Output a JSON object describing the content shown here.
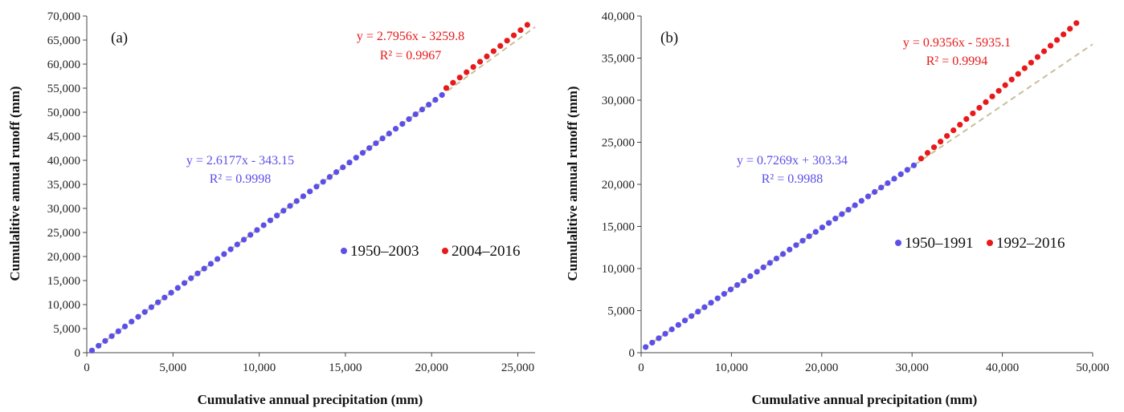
{
  "chart_data": [
    {
      "type": "scatter",
      "panel_label": "(a)",
      "xlabel": "Cumulative annual precipitation (mm)",
      "ylabel": "Cumulalitive annual runoff (mm)",
      "xlim": [
        0,
        26000
      ],
      "ylim": [
        0,
        70000
      ],
      "xticks": [
        "0",
        "5,000",
        "10,000",
        "15,000",
        "20,000",
        "25,000"
      ],
      "yticks": [
        "0",
        "5,000",
        "10,000",
        "15,000",
        "20,000",
        "25,000",
        "30,000",
        "35,000",
        "40,000",
        "45,000",
        "50,000",
        "55,000",
        "60,000",
        "65,000",
        "70,000"
      ],
      "grid": false,
      "legend_position": "center-right",
      "series": [
        {
          "name": "1950–2003",
          "color": "#5B4FE8",
          "x_start": 300,
          "x_end": 20600,
          "count": 54,
          "slope": 2.6177,
          "intercept": -343.15,
          "equation": "y = 2.6177x - 343.15",
          "r2": "R² = 0.9998"
        },
        {
          "name": "2004–2016",
          "color": "#E8191A",
          "x_start": 20850,
          "x_end": 25550,
          "count": 13,
          "slope": 2.7956,
          "intercept": -3259.8,
          "equation": "y = 2.7956x - 3259.8",
          "r2": "R² = 0.9967"
        }
      ],
      "trend_line": {
        "style": "dashed",
        "color": "#C8BE9A",
        "extends_to_x": 26000
      }
    },
    {
      "type": "scatter",
      "panel_label": "(b)",
      "xlabel": "Cumulative annual precipitation (mm)",
      "ylabel": "Cumulalitive annual runoff (mm)",
      "xlim": [
        0,
        50000
      ],
      "ylim": [
        0,
        40000
      ],
      "xticks": [
        "0",
        "10,000",
        "20,000",
        "30,000",
        "40,000",
        "50,000"
      ],
      "yticks": [
        "0",
        "5,000",
        "10,000",
        "15,000",
        "20,000",
        "25,000",
        "30,000",
        "35,000",
        "40,000"
      ],
      "grid": false,
      "legend_position": "center-right",
      "series": [
        {
          "name": "1950–1991",
          "color": "#5B4FE8",
          "x_start": 500,
          "x_end": 30200,
          "count": 42,
          "slope": 0.7269,
          "intercept": 303.34,
          "equation": "y = 0.7269x + 303.34",
          "r2": "R² = 0.9988"
        },
        {
          "name": "1992–2016",
          "color": "#E8191A",
          "x_start": 31000,
          "x_end": 48200,
          "count": 25,
          "slope": 0.9356,
          "intercept": -5935.1,
          "equation": "y = 0.9356x - 5935.1",
          "r2": "R² = 0.9994"
        }
      ],
      "trend_line": {
        "style": "dashed",
        "color": "#C8BE9A",
        "extends_to_x": 50000
      }
    }
  ]
}
